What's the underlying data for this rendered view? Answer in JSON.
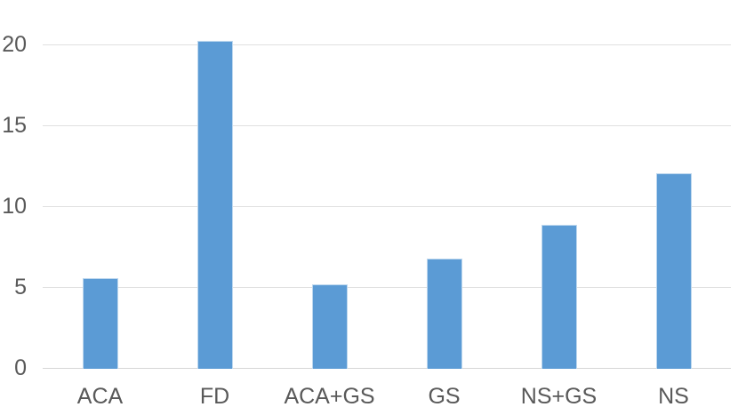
{
  "chart_data": {
    "type": "bar",
    "categories": [
      "ACA",
      "FD",
      "ACA+GS",
      "GS",
      "NS+GS",
      "NS"
    ],
    "values": [
      5.6,
      20.3,
      5.2,
      6.8,
      8.9,
      12.1
    ],
    "title": "",
    "xlabel": "",
    "ylabel": "",
    "ylim": [
      0,
      22.8
    ],
    "yticks": [
      0,
      5,
      10,
      15,
      20
    ],
    "grid": true,
    "legend_position": "none",
    "bar_color": "#5B9BD5",
    "bar_border_color": "#BDD7EE",
    "gridline_color": "#E0E0E0",
    "axis_line_color": "#D6D6D6",
    "tick_label_color": "#595959"
  }
}
